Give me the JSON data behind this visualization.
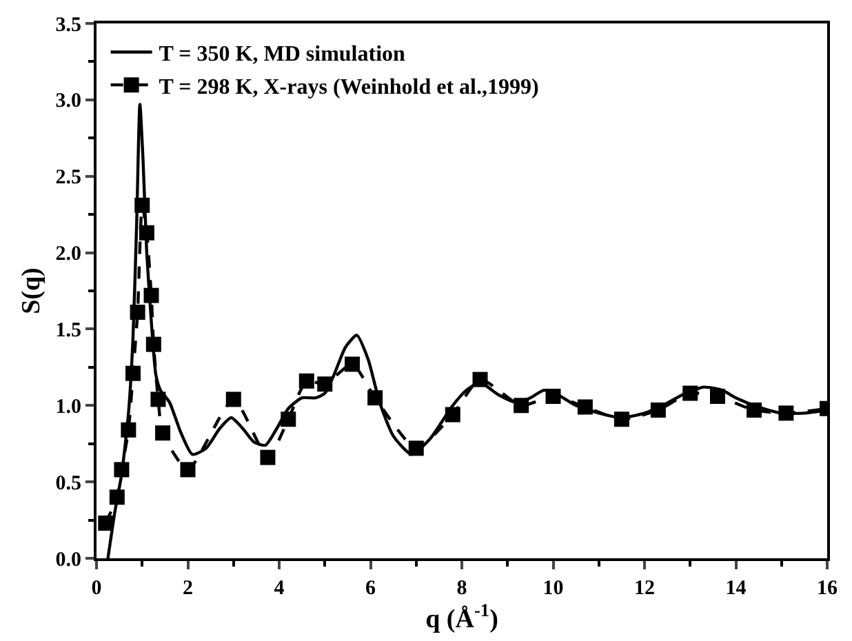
{
  "chart_data": {
    "type": "line",
    "xlabel": "q (Å$^{-1}$)",
    "ylabel": "S(q)",
    "xlim": [
      0,
      16
    ],
    "xticks": [
      0,
      2,
      4,
      6,
      8,
      10,
      12,
      14,
      16
    ],
    "ylim": [
      0,
      3.5
    ],
    "yticks": [
      {
        "value": 0,
        "label": "0.0"
      },
      0.5,
      {
        "value": 1,
        "label": "1.0"
      },
      1.5,
      {
        "value": 2,
        "label": "2.0"
      },
      2.5,
      {
        "value": 3,
        "label": "3.0"
      },
      3.5
    ],
    "legend": "top left",
    "series": [
      {
        "name": "T = 350 K, MD simulation",
        "color": "#000000",
        "marker": "none",
        "line_style": "solid",
        "x": [
          0.25,
          0.4,
          0.55,
          0.7,
          0.8,
          0.88,
          0.95,
          1.02,
          1.1,
          1.2,
          1.3,
          1.4,
          1.6,
          1.85,
          2.1,
          2.4,
          2.7,
          2.95,
          3.2,
          3.45,
          3.7,
          3.95,
          4.2,
          4.5,
          4.8,
          5.0,
          5.2,
          5.45,
          5.7,
          5.95,
          6.2,
          6.5,
          6.9,
          7.3,
          7.8,
          8.1,
          8.4,
          8.8,
          9.2,
          9.5,
          9.8,
          10.1,
          10.5,
          11.0,
          11.5,
          12.0,
          12.4,
          12.9,
          13.3,
          13.7,
          14.0,
          14.5,
          15.0,
          15.5,
          16.0
        ],
        "values": [
          0.0,
          0.3,
          0.55,
          0.95,
          1.45,
          2.2,
          2.97,
          2.6,
          2.0,
          1.55,
          1.2,
          1.1,
          1.02,
          0.82,
          0.68,
          0.72,
          0.85,
          0.92,
          0.85,
          0.76,
          0.74,
          0.85,
          0.98,
          1.05,
          1.05,
          1.08,
          1.2,
          1.38,
          1.46,
          1.3,
          1.02,
          0.8,
          0.68,
          0.78,
          1.0,
          1.1,
          1.15,
          1.07,
          1.02,
          1.05,
          1.1,
          1.07,
          1.0,
          0.95,
          0.92,
          0.95,
          1.0,
          1.08,
          1.12,
          1.1,
          1.05,
          0.99,
          0.95,
          0.95,
          0.97
        ]
      },
      {
        "name": "T = 298 K, X-rays (Weinhold et al.,1999)",
        "color": "#000000",
        "marker": "square",
        "line_style": "dashed",
        "x": [
          0.2,
          0.45,
          0.55,
          0.7,
          0.8,
          0.9,
          1.0,
          1.1,
          1.2,
          1.25,
          1.35,
          1.45,
          2.0,
          3.0,
          3.75,
          4.2,
          4.6,
          5.0,
          5.6,
          6.1,
          7.0,
          7.8,
          8.4,
          9.3,
          10.0,
          10.7,
          11.5,
          12.3,
          13.0,
          13.6,
          14.4,
          15.1,
          16.0
        ],
        "values": [
          0.23,
          0.4,
          0.58,
          0.84,
          1.21,
          1.61,
          2.31,
          2.13,
          1.72,
          1.4,
          1.04,
          0.82,
          0.58,
          1.04,
          0.66,
          0.91,
          1.16,
          1.14,
          1.27,
          1.05,
          0.72,
          0.94,
          1.17,
          1.0,
          1.06,
          0.99,
          0.91,
          0.97,
          1.08,
          1.06,
          0.97,
          0.95,
          0.98
        ]
      }
    ]
  }
}
